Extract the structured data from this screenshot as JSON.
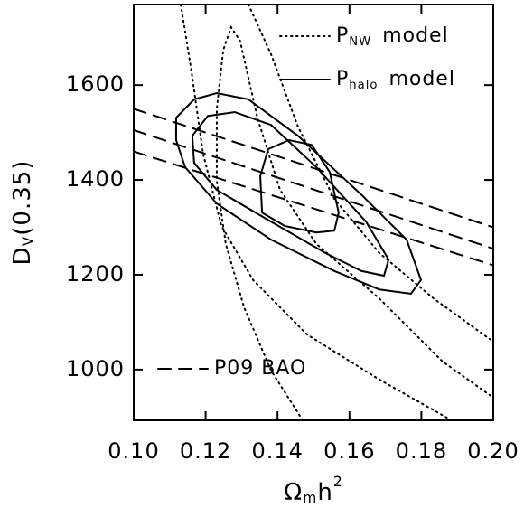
{
  "chart_data": {
    "type": "contour",
    "xlabel": [
      "Ω",
      "m",
      "h",
      "2"
    ],
    "ylabel": [
      "D",
      "V",
      "(0.35)"
    ],
    "xlim": [
      0.1,
      0.2
    ],
    "ylim": [
      893,
      1770
    ],
    "xticks": [
      {
        "value": 0.1,
        "label": "0.10"
      },
      {
        "value": 0.12,
        "label": "0.12"
      },
      {
        "value": 0.14,
        "label": "0.14"
      },
      {
        "value": 0.16,
        "label": "0.16"
      },
      {
        "value": 0.18,
        "label": "0.18"
      },
      {
        "value": 0.2,
        "label": "0.20"
      }
    ],
    "yticks": [
      1000,
      1200,
      1400,
      1600
    ],
    "series": [
      {
        "name": [
          "P",
          "NW",
          "model"
        ],
        "style": "dotted",
        "color": "#000000",
        "contours": [
          {
            "x": [
              0.147,
              0.1382,
              0.1307,
              0.1256,
              0.1231,
              0.1231,
              0.1249,
              0.1271,
              0.1296,
              0.1344,
              0.1407,
              0.1508,
              0.1683,
              0.1859,
              0.2
            ],
            "y": [
              893,
              998,
              1131,
              1265,
              1398,
              1550,
              1674,
              1722,
              1693,
              1531,
              1379,
              1265,
              1150,
              1017,
              941
            ]
          },
          {
            "x": [
              0.1884,
              0.1683,
              0.1482,
              0.1332,
              0.1244,
              0.1193,
              0.1161,
              0.1131,
              null,
              0.1319,
              0.1382,
              0.1457,
              0.1558,
              0.1683,
              0.1834,
              0.2
            ],
            "y": [
              893,
              979,
              1074,
              1189,
              1303,
              1455,
              1627,
              1770,
              null,
              1770,
              1665,
              1512,
              1360,
              1246,
              1150,
              1059
            ]
          }
        ]
      },
      {
        "name": [
          "P",
          "halo",
          "model"
        ],
        "style": "solid",
        "color": "#000000",
        "contours": [
          {
            "x": [
              0.1357,
              0.1352,
              0.1374,
              0.1432,
              0.1495,
              0.1545,
              0.157,
              0.1558,
              0.1508,
              0.142,
              0.1357
            ],
            "y": [
              1331,
              1408,
              1465,
              1484,
              1474,
              1417,
              1331,
              1293,
              1289,
              1303,
              1331
            ]
          },
          {
            "x": [
              0.1163,
              0.1206,
              0.1281,
              0.1382,
              0.1508,
              0.1646,
              0.1709,
              0.1696,
              0.1633,
              0.1533,
              0.1382,
              0.1231,
              0.1168,
              0.1163
            ],
            "y": [
              1493,
              1535,
              1543,
              1516,
              1427,
              1312,
              1232,
              1198,
              1208,
              1246,
              1312,
              1379,
              1436,
              1493
            ]
          },
          {
            "x": [
              0.1118,
              0.1168,
              0.1231,
              0.1319,
              0.1457,
              0.1633,
              0.1759,
              0.1799,
              0.1771,
              0.1683,
              0.1558,
              0.1382,
              0.1231,
              0.1143,
              0.1118,
              0.1118
            ],
            "y": [
              1531,
              1570,
              1583,
              1570,
              1493,
              1369,
              1274,
              1189,
              1160,
              1169,
              1208,
              1274,
              1350,
              1427,
              1484,
              1531
            ]
          }
        ]
      },
      {
        "name": [
          "P09  BAO"
        ],
        "style": "dashed",
        "color": "#000000",
        "contours": [
          {
            "x": [
              0.1,
              0.2
            ],
            "y": [
              1550,
              1300
            ]
          },
          {
            "x": [
              0.1,
              0.2
            ],
            "y": [
              1505,
              1255
            ]
          },
          {
            "x": [
              0.1,
              0.2
            ],
            "y": [
              1460,
              1220
            ]
          }
        ]
      }
    ]
  }
}
